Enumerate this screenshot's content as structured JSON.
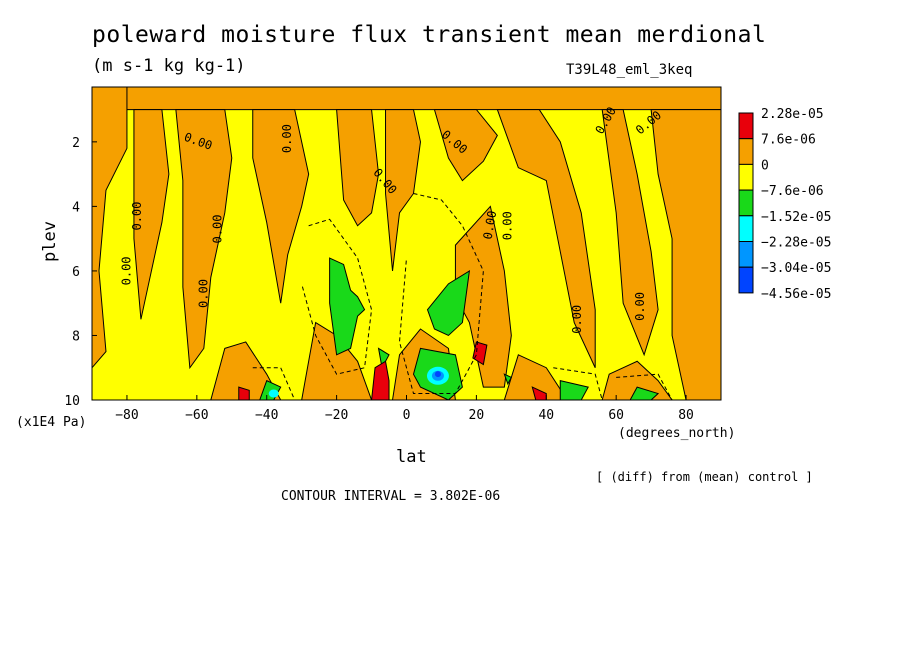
{
  "chart_data": {
    "type": "contour",
    "title": "poleward moisture flux transient mean merdional",
    "units": "(m s-1 kg kg-1)",
    "run_name": "T39L48_eml_3keq",
    "xlabel": "lat",
    "xlabel_units": "(degrees_north)",
    "ylabel": "plev",
    "ylabel_units": "(x1E4 Pa)",
    "xlim": [
      -90,
      90
    ],
    "ylim": [
      10,
      0.3
    ],
    "x_ticks": [
      -80,
      -60,
      -40,
      -20,
      0,
      20,
      40,
      60,
      80
    ],
    "y_ticks": [
      2,
      4,
      6,
      8,
      10
    ],
    "note": "[ (diff) from (mean) control ]",
    "contour_interval": "CONTOUR INTERVAL = 3.802E-06",
    "contour_label": "0.00",
    "colorbar": {
      "labels": [
        "2.28e-05",
        "7.6e-06",
        "0",
        "−7.6e-06",
        "−1.52e-05",
        "−2.28e-05",
        "−3.04e-05",
        "−4.56e-05"
      ],
      "colors": [
        "#e8000b",
        "#f5a000",
        "#ffff00",
        "#19d919",
        "#00ffff",
        "#0096ff",
        "#0044ff"
      ]
    },
    "regions": {
      "positive": [
        {
          "x": [
            -90,
            -84,
            -76,
            -70,
            -66,
            -60,
            -54,
            -50,
            -48,
            -46,
            -44,
            -40,
            -36,
            -32,
            -28,
            -24,
            -20,
            -16,
            -12,
            -10,
            -8,
            -6,
            -4,
            -2,
            0,
            4,
            8,
            12,
            16,
            20,
            24,
            28,
            32,
            36,
            40,
            44,
            48,
            52,
            56,
            60,
            64,
            68,
            72,
            76,
            80,
            84,
            88,
            90
          ],
          "y_top": [
            0.3,
            0.3,
            0.3,
            0.3,
            0.3,
            0.3,
            0.3,
            0.3,
            0.3,
            0.3,
            0.3,
            0.3,
            0.3,
            0.3,
            0.3,
            0.3,
            0.3,
            0.3,
            0.3,
            0.3,
            0.3,
            0.3,
            0.3,
            0.3,
            0.3,
            0.3,
            0.3,
            0.3,
            0.3,
            0.3,
            0.3,
            0.3,
            0.3,
            0.3,
            0.3,
            0.3,
            0.3,
            0.3,
            0.3,
            0.3,
            0.3,
            0.3,
            0.3,
            0.3,
            0.3,
            0.3,
            0.3,
            0.3
          ]
        }
      ],
      "maxima_lat": [
        -7,
        38,
        -47,
        21
      ]
    }
  }
}
